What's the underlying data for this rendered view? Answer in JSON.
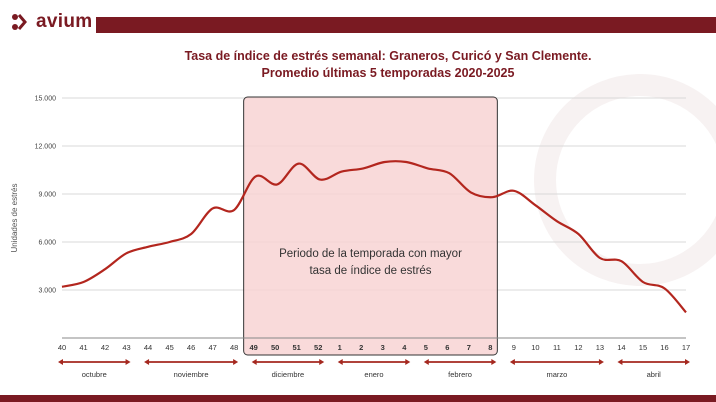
{
  "brand": {
    "name": "avium",
    "color": "#7a1a22"
  },
  "chart_data": {
    "type": "line",
    "title": "Tasa de índice de estrés semanal: Graneros, Curicó y San Clemente.",
    "subtitle": "Promedio últimas 5 temporadas 2020-2025",
    "xlabel": "",
    "ylabel": "Unidades de estrés",
    "ylim": [
      0,
      15000
    ],
    "yticks": [
      3000,
      6000,
      9000,
      12000,
      15000
    ],
    "ytick_labels": [
      "3.000",
      "6.000",
      "9.000",
      "12.000",
      "15.000"
    ],
    "grid": true,
    "categories": [
      "40",
      "41",
      "42",
      "43",
      "44",
      "45",
      "46",
      "47",
      "48",
      "49",
      "50",
      "51",
      "52",
      "1",
      "2",
      "3",
      "4",
      "5",
      "6",
      "7",
      "8",
      "9",
      "10",
      "11",
      "12",
      "13",
      "14",
      "15",
      "16",
      "17"
    ],
    "bold_categories": [
      "49",
      "50",
      "51",
      "52",
      "1",
      "2",
      "3",
      "4",
      "5",
      "6",
      "7",
      "8"
    ],
    "series": [
      {
        "name": "Tasa de índice de estrés",
        "color": "#b3261e",
        "values": [
          3200,
          3500,
          4300,
          5300,
          5700,
          6000,
          6500,
          8100,
          8000,
          10100,
          9600,
          10900,
          9900,
          10400,
          10600,
          11000,
          11000,
          10600,
          10300,
          9100,
          8800,
          9200,
          8300,
          7300,
          6500,
          5000,
          4800,
          3500,
          3100,
          1600
        ]
      }
    ],
    "months": [
      {
        "label": "octubre",
        "from": "40",
        "to": "43"
      },
      {
        "label": "noviembre",
        "from": "44",
        "to": "48"
      },
      {
        "label": "diciembre",
        "from": "49",
        "to": "52"
      },
      {
        "label": "enero",
        "from": "1",
        "to": "4"
      },
      {
        "label": "febrero",
        "from": "5",
        "to": "8"
      },
      {
        "label": "marzo",
        "from": "9",
        "to": "13"
      },
      {
        "label": "abril",
        "from": "14",
        "to": "17"
      }
    ],
    "highlight": {
      "from": "49",
      "to": "8",
      "label_line1": "Periodo de la temporada con mayor",
      "label_line2": "tasa de índice de estrés",
      "fill": "#f8d3d3"
    }
  }
}
